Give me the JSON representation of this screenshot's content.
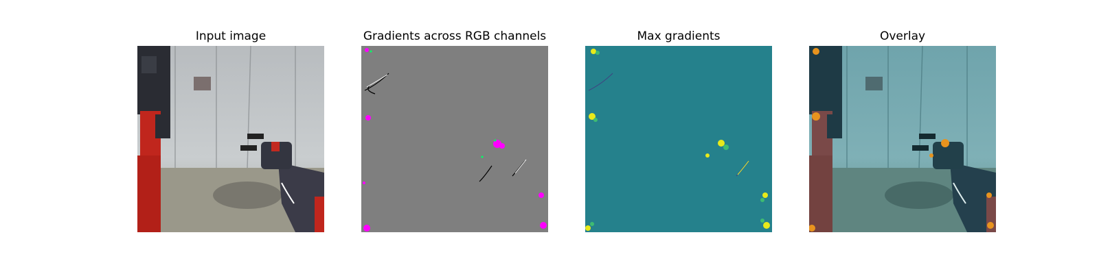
{
  "panels": [
    {
      "title": "Input image",
      "content": "photo of a red and black robot arm reaching toward a gripper in a room with glass panels"
    },
    {
      "title": "Gradients across RGB channels",
      "content": "gray gradient map with colored saliency spots"
    },
    {
      "title": "Max gradients",
      "content": "teal max-gradient map with yellow highlights"
    },
    {
      "title": "Overlay",
      "content": "input image tinted teal with orange gradient overlay"
    }
  ]
}
